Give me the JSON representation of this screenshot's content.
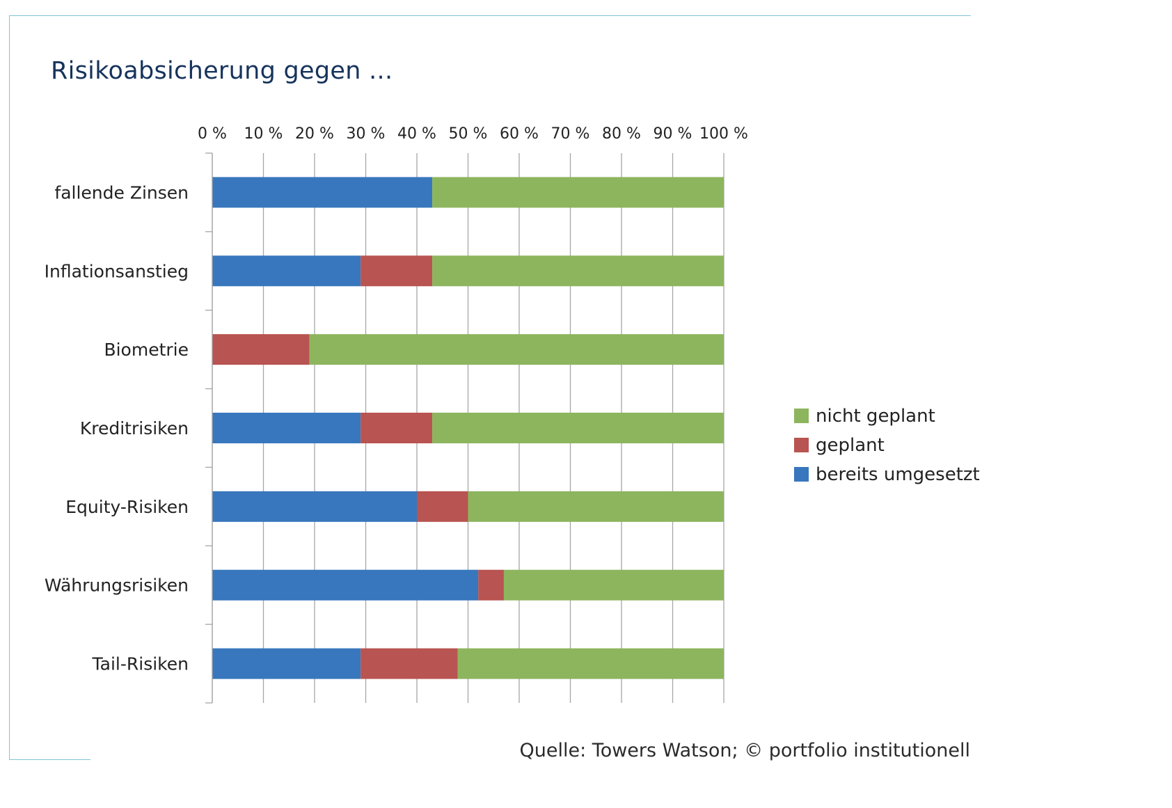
{
  "title": "Risikoabsicherung gegen ...",
  "source": "Quelle: Towers Watson; © portfolio institutionell",
  "colors": {
    "frame": "#7fc3d6",
    "title": "#16335c",
    "bereits_umgesetzt": "#3877bd",
    "geplant": "#b85451",
    "nicht_geplant": "#8db55e",
    "grid": "#a6a6a6"
  },
  "chart_data": {
    "type": "bar",
    "orientation": "horizontal",
    "stacked": true,
    "title": "Risikoabsicherung gegen ...",
    "xlabel": "",
    "ylabel": "",
    "xlim": [
      0,
      100
    ],
    "x_ticks": [
      "0 %",
      "10 %",
      "20 %",
      "30 %",
      "40 %",
      "50 %",
      "60 %",
      "70 %",
      "80 %",
      "90 %",
      "100 %"
    ],
    "x_axis_position": "top",
    "grid": true,
    "legend_position": "right",
    "categories": [
      "fallende Zinsen",
      "Inflationsanstieg",
      "Biometrie",
      "Kreditrisiken",
      "Equity-Risiken",
      "Währungsrisiken",
      "Tail-Risiken"
    ],
    "series": [
      {
        "name": "bereits umgesetzt",
        "color": "#3877bd",
        "values": [
          43,
          29,
          0,
          29,
          40,
          52,
          29
        ]
      },
      {
        "name": "geplant",
        "color": "#b85451",
        "values": [
          0,
          14,
          19,
          14,
          10,
          5,
          19
        ]
      },
      {
        "name": "nicht geplant",
        "color": "#8db55e",
        "values": [
          57,
          57,
          81,
          57,
          50,
          43,
          52
        ]
      }
    ],
    "legend_order": [
      "nicht geplant",
      "geplant",
      "bereits umgesetzt"
    ]
  }
}
